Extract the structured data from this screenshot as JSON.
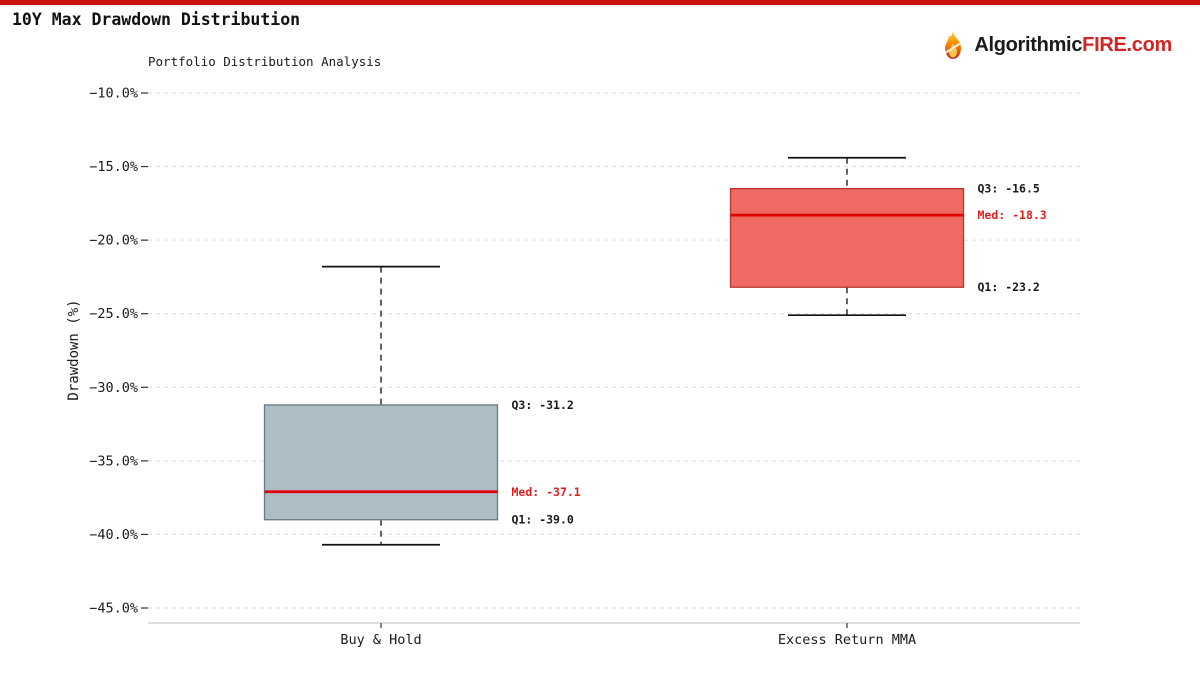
{
  "page": {
    "title": "10Y Max Drawdown Distribution",
    "top_bar_color": "#cc1111"
  },
  "logo": {
    "text_black": "Algorithmic",
    "text_red": "FIRE.com",
    "red_color": "#d32424",
    "icon": "flame-icon"
  },
  "chart_data": {
    "type": "boxplot",
    "title": "Portfolio Distribution Analysis",
    "ylabel": "Drawdown (%)",
    "xlabel": "",
    "ylim": [
      -45.0,
      -10.0
    ],
    "yticks": [
      -10,
      -15,
      -20,
      -25,
      -30,
      -35,
      -40,
      -45
    ],
    "ytick_labels": [
      "−10.0%",
      "−15.0%",
      "−20.0%",
      "−25.0%",
      "−30.0%",
      "−35.0%",
      "−40.0%",
      "−45.0%"
    ],
    "grid": "horizontal-dashed",
    "legend": "none",
    "categories": [
      "Buy & Hold",
      "Excess Return MMA"
    ],
    "series": [
      {
        "name": "Buy & Hold",
        "q1": -39.0,
        "median": -37.1,
        "q3": -31.2,
        "whisker_low": -40.7,
        "whisker_high": -21.8,
        "fill": "#aebcc5",
        "edge": "#6a7a85",
        "labels": {
          "q3": "Q3: -31.2",
          "med": "Med: -37.1",
          "q1": "Q1: -39.0"
        }
      },
      {
        "name": "Excess Return MMA",
        "q1": -23.2,
        "median": -18.3,
        "q3": -16.5,
        "whisker_low": -25.1,
        "whisker_high": -14.4,
        "fill": "#ee6a63",
        "edge": "#b7362c",
        "labels": {
          "q3": "Q3: -16.5",
          "med": "Med: -18.3",
          "q1": "Q1: -23.2"
        }
      }
    ],
    "colors": {
      "median_line": "#e10000",
      "median_label": "#dd1f1f",
      "annotation_text": "#1a1a1a",
      "gridline": "#d9d9d9",
      "whisker": "#111111",
      "spine": "#cccccc",
      "tick_text": "#1a1a1a"
    }
  }
}
